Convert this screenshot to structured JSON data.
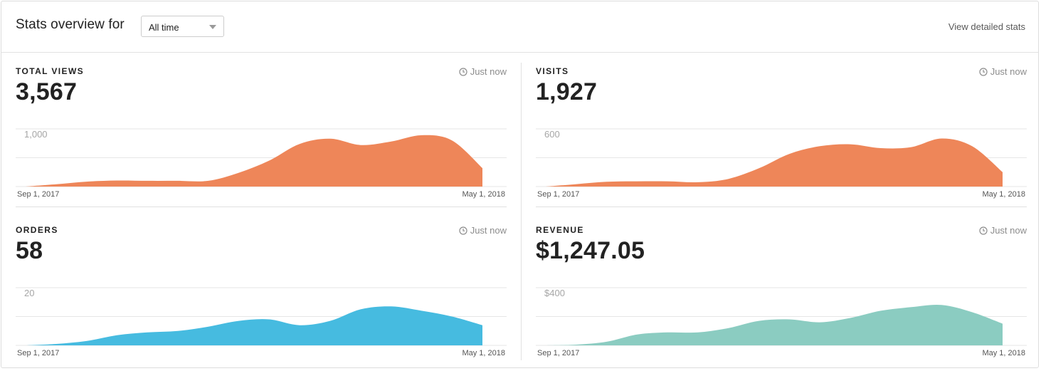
{
  "header": {
    "title": "Stats overview for",
    "range_value": "All time",
    "detail_link": "View detailed stats"
  },
  "cards": [
    {
      "label": "TOTAL VIEWS",
      "updated": "Just now",
      "value": "3,567",
      "color": "#ee8659"
    },
    {
      "label": "VISITS",
      "updated": "Just now",
      "value": "1,927",
      "color": "#ee8659"
    },
    {
      "label": "ORDERS",
      "updated": "Just now",
      "value": "58",
      "color": "#46bbe0"
    },
    {
      "label": "REVENUE",
      "updated": "Just now",
      "value": "$1,247.05",
      "color": "#8bccc1"
    }
  ],
  "chart_data": [
    {
      "type": "area",
      "x_start_label": "Sep 1, 2017",
      "x_end_label": "May 1, 2018",
      "ylim": [
        0,
        1000
      ],
      "y_tick_label": "1,000",
      "grid": true,
      "color": "#ee8659",
      "values": [
        0,
        40,
        85,
        105,
        100,
        100,
        100,
        240,
        450,
        740,
        830,
        720,
        780,
        890,
        800,
        320
      ]
    },
    {
      "type": "area",
      "x_start_label": "Sep 1, 2017",
      "x_end_label": "May 1, 2018",
      "ylim": [
        0,
        600
      ],
      "y_tick_label": "600",
      "grid": true,
      "color": "#ee8659",
      "values": [
        0,
        25,
        50,
        55,
        55,
        45,
        80,
        190,
        340,
        420,
        440,
        400,
        410,
        500,
        420,
        150
      ]
    },
    {
      "type": "area",
      "x_start_label": "Sep 1, 2017",
      "x_end_label": "May 1, 2018",
      "ylim": [
        0,
        20
      ],
      "y_tick_label": "20",
      "grid": true,
      "color": "#46bbe0",
      "values": [
        0,
        0.5,
        1.5,
        3.5,
        4.5,
        5,
        6.5,
        8.5,
        9,
        7,
        8.5,
        12.5,
        13.5,
        12,
        10,
        7
      ]
    },
    {
      "type": "area",
      "x_start_label": "Sep 1, 2017",
      "x_end_label": "May 1, 2018",
      "ylim": [
        0,
        400
      ],
      "y_tick_label": "$400",
      "grid": true,
      "color": "#8bccc1",
      "values": [
        0,
        5,
        25,
        75,
        90,
        90,
        120,
        170,
        180,
        160,
        190,
        240,
        265,
        280,
        230,
        150
      ]
    }
  ]
}
